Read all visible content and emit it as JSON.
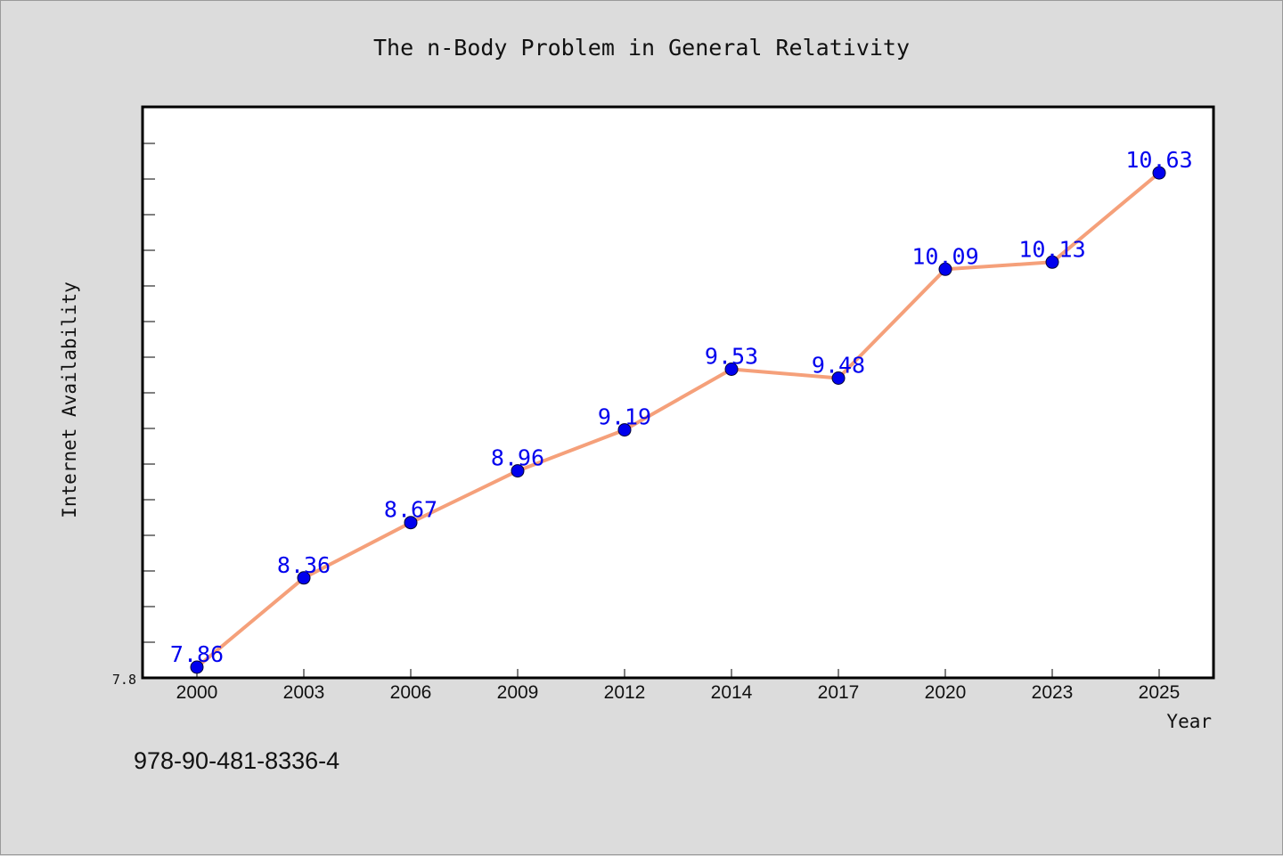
{
  "chart_data": {
    "type": "line",
    "title": "The n-Body Problem in General Relativity",
    "xlabel": "Year",
    "ylabel": "Internet Availability",
    "categories": [
      "2000",
      "2003",
      "2006",
      "2009",
      "2012",
      "2014",
      "2017",
      "2020",
      "2023",
      "2025"
    ],
    "series": [
      {
        "values": [
          7.86,
          8.36,
          8.67,
          8.96,
          9.19,
          9.53,
          9.48,
          10.09,
          10.13,
          10.63
        ],
        "line_color": "#f5a07a",
        "marker_color": "#0000ee"
      }
    ],
    "data_labels": [
      "7.86",
      "8.36",
      "8.67",
      "8.96",
      "9.19",
      "9.53",
      "9.48",
      "10.09",
      "10.13",
      "10.63"
    ],
    "ylim": [
      7.8,
      11.0
    ],
    "yticks": [
      "7.8"
    ],
    "grid": false,
    "legend": "none"
  },
  "footer_text": "978-90-481-8336-4"
}
